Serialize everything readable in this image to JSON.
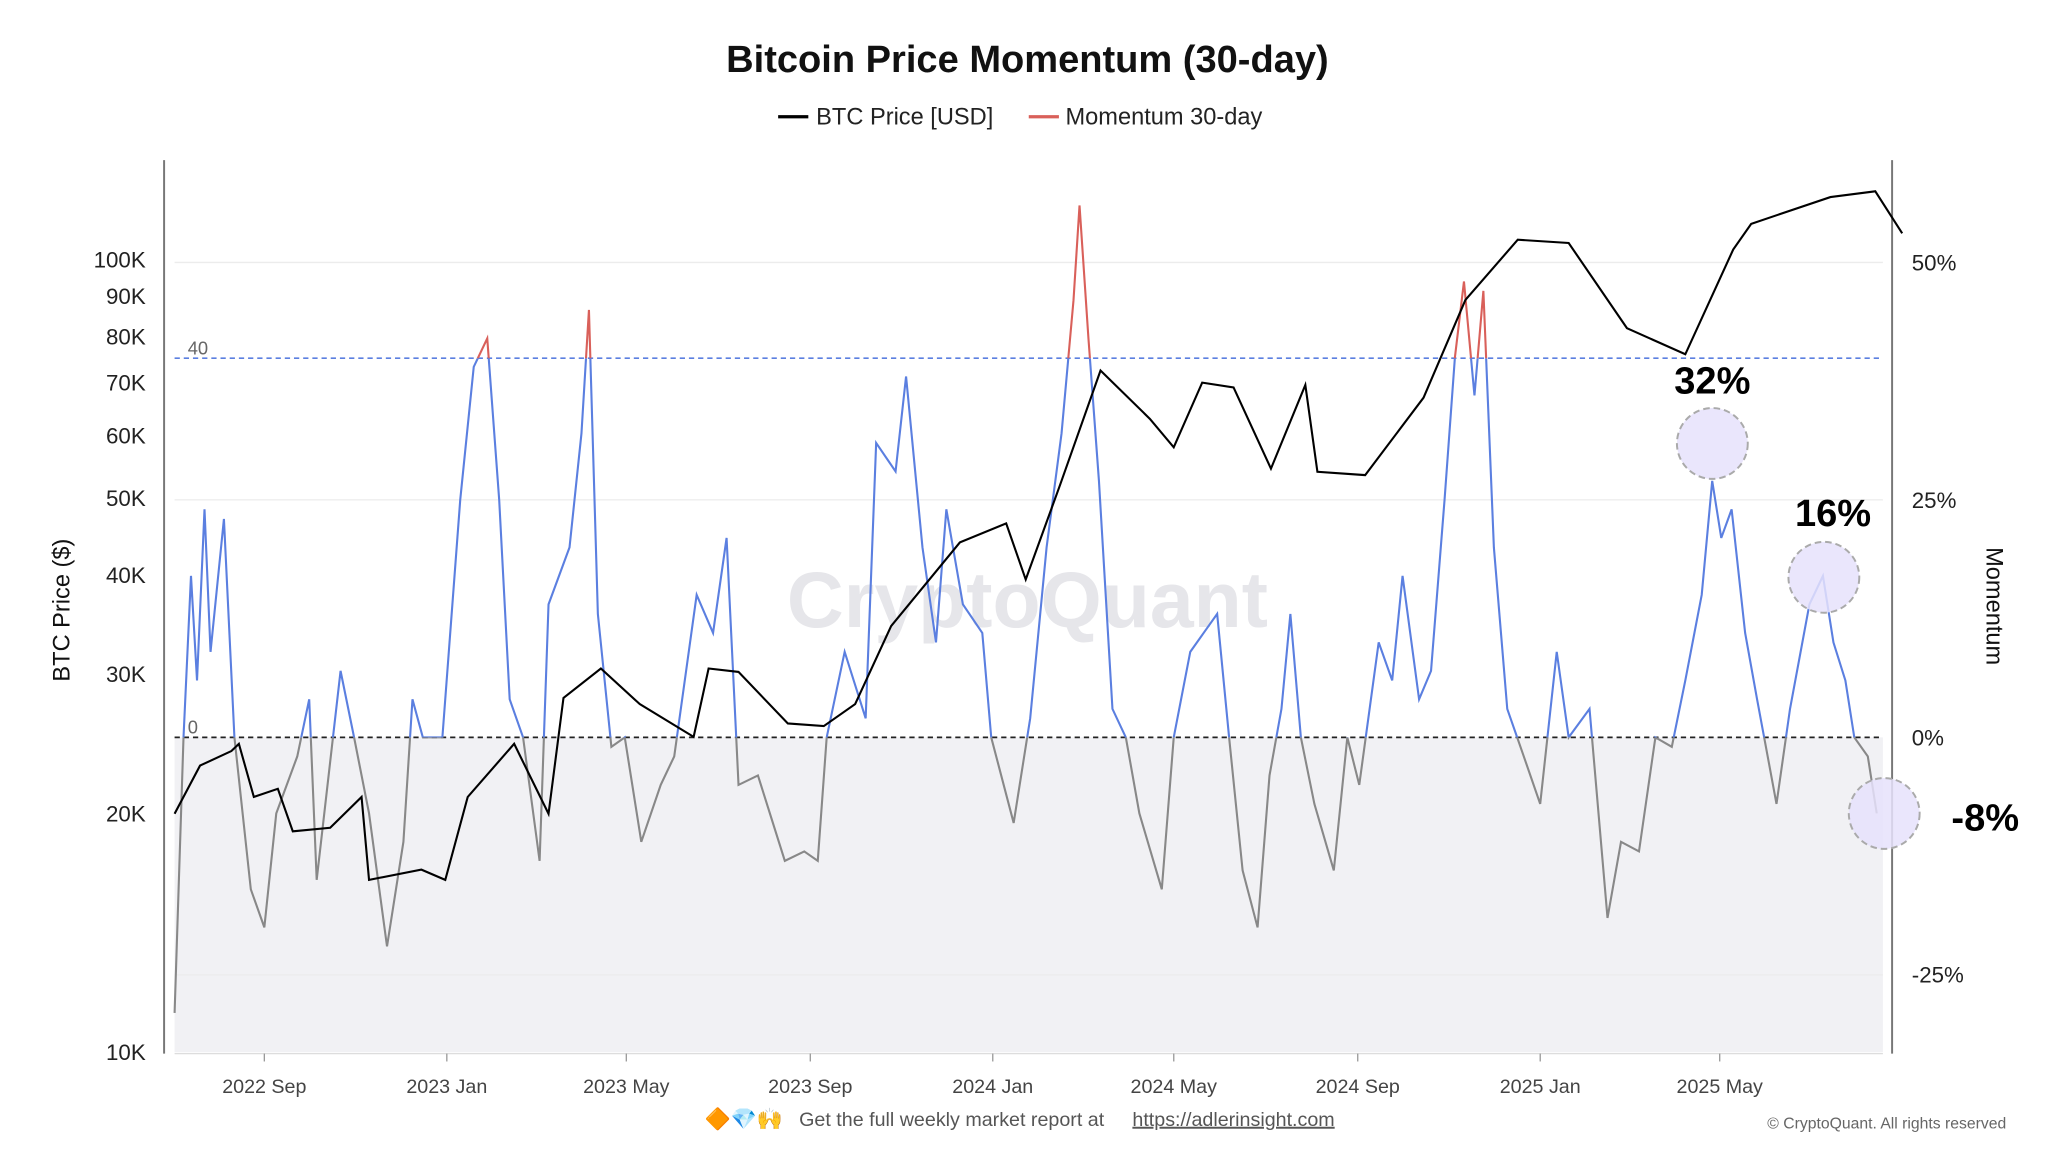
{
  "chart_data": {
    "type": "line",
    "title": "Bitcoin Price Momentum (30-day)",
    "legend": [
      {
        "name": "BTC Price [USD]",
        "color": "#000000"
      },
      {
        "name": "Momentum 30-day",
        "color": "#d9605a"
      }
    ],
    "legend_position": "top",
    "ylabel_left": "BTC Price ($)",
    "ylabel_right": "Momentum",
    "left_axis": {
      "scale": "log",
      "range": [
        10000,
        130000
      ],
      "ticks": [
        "10K",
        "20K",
        "30K",
        "40K",
        "50K",
        "60K",
        "70K",
        "80K",
        "90K",
        "100K"
      ]
    },
    "right_axis": {
      "range": [
        -33,
        60
      ],
      "ticks": [
        "-25%",
        "0%",
        "25%",
        "50%"
      ]
    },
    "x_ticks": [
      "2022 Sep",
      "2023 Jan",
      "2023 May",
      "2023 Sep",
      "2024 Jan",
      "2024 May",
      "2024 Sep",
      "2025 Jan",
      "2025 May"
    ],
    "x_range": [
      "2022-07-03",
      "2025-08-31"
    ],
    "threshold_lines": [
      {
        "label": "40",
        "value": 40,
        "color": "#5b7fe0"
      },
      {
        "label": "0",
        "value": 0,
        "color": "#222222"
      }
    ],
    "momentum_colors": {
      "above_40": "#d9605a",
      "between_0_40": "#5b7fe0",
      "below_0": "#888888"
    },
    "annotations": [
      "32%",
      "16%",
      "-8%"
    ],
    "watermark": "CryptoQuant",
    "btc_price": [
      [
        "2022-07-03",
        20000
      ],
      [
        "2022-07-20",
        23000
      ],
      [
        "2022-08-10",
        24000
      ],
      [
        "2022-08-15",
        24500
      ],
      [
        "2022-08-25",
        21000
      ],
      [
        "2022-09-10",
        21500
      ],
      [
        "2022-09-20",
        19000
      ],
      [
        "2022-10-15",
        19200
      ],
      [
        "2022-11-05",
        21000
      ],
      [
        "2022-11-10",
        16500
      ],
      [
        "2022-12-15",
        17000
      ],
      [
        "2022-12-31",
        16500
      ],
      [
        "2023-01-15",
        21000
      ],
      [
        "2023-02-15",
        24500
      ],
      [
        "2023-03-10",
        20000
      ],
      [
        "2023-03-20",
        28000
      ],
      [
        "2023-04-14",
        30500
      ],
      [
        "2023-05-10",
        27500
      ],
      [
        "2023-06-15",
        25000
      ],
      [
        "2023-06-25",
        30500
      ],
      [
        "2023-07-15",
        30200
      ],
      [
        "2023-08-17",
        26000
      ],
      [
        "2023-09-10",
        25800
      ],
      [
        "2023-10-01",
        27500
      ],
      [
        "2023-10-25",
        34500
      ],
      [
        "2023-12-10",
        44000
      ],
      [
        "2024-01-10",
        46500
      ],
      [
        "2024-01-23",
        39500
      ],
      [
        "2024-02-15",
        52000
      ],
      [
        "2024-03-13",
        72500
      ],
      [
        "2024-04-15",
        63000
      ],
      [
        "2024-05-01",
        58000
      ],
      [
        "2024-05-20",
        70000
      ],
      [
        "2024-06-10",
        69000
      ],
      [
        "2024-07-05",
        54500
      ],
      [
        "2024-07-28",
        69500
      ],
      [
        "2024-08-05",
        54000
      ],
      [
        "2024-09-06",
        53500
      ],
      [
        "2024-10-15",
        67000
      ],
      [
        "2024-11-12",
        89000
      ],
      [
        "2024-12-17",
        106000
      ],
      [
        "2025-01-20",
        105000
      ],
      [
        "2025-02-28",
        82000
      ],
      [
        "2025-04-08",
        76000
      ],
      [
        "2025-05-10",
        103000
      ],
      [
        "2025-05-22",
        111000
      ],
      [
        "2025-07-14",
        120000
      ],
      [
        "2025-08-13",
        122000
      ],
      [
        "2025-08-31",
        108000
      ]
    ],
    "momentum_30d": [
      [
        "2022-07-03",
        -29
      ],
      [
        "2022-07-09",
        0
      ],
      [
        "2022-07-14",
        17
      ],
      [
        "2022-07-18",
        6
      ],
      [
        "2022-07-23",
        24
      ],
      [
        "2022-07-27",
        9
      ],
      [
        "2022-08-05",
        23
      ],
      [
        "2022-08-12",
        0
      ],
      [
        "2022-08-23",
        -16
      ],
      [
        "2022-09-01",
        -20
      ],
      [
        "2022-09-09",
        -8
      ],
      [
        "2022-09-23",
        -2
      ],
      [
        "2022-10-01",
        4
      ],
      [
        "2022-10-06",
        -15
      ],
      [
        "2022-10-22",
        7
      ],
      [
        "2022-10-31",
        0
      ],
      [
        "2022-11-10",
        -8
      ],
      [
        "2022-11-22",
        -22
      ],
      [
        "2022-12-03",
        -11
      ],
      [
        "2022-12-09",
        4
      ],
      [
        "2022-12-16",
        0
      ],
      [
        "2022-12-29",
        0
      ],
      [
        "2023-01-10",
        25
      ],
      [
        "2023-01-19",
        39
      ],
      [
        "2023-01-28",
        42
      ],
      [
        "2023-02-05",
        25
      ],
      [
        "2023-02-12",
        4
      ],
      [
        "2023-02-21",
        0
      ],
      [
        "2023-03-04",
        -13
      ],
      [
        "2023-03-10",
        14
      ],
      [
        "2023-03-24",
        20
      ],
      [
        "2023-04-01",
        32
      ],
      [
        "2023-04-06",
        45
      ],
      [
        "2023-04-12",
        13
      ],
      [
        "2023-04-21",
        -1
      ],
      [
        "2023-04-30",
        0
      ],
      [
        "2023-05-11",
        -11
      ],
      [
        "2023-05-24",
        -5
      ],
      [
        "2023-06-02",
        -2
      ],
      [
        "2023-06-17",
        15
      ],
      [
        "2023-06-28",
        11
      ],
      [
        "2023-07-07",
        21
      ],
      [
        "2023-07-15",
        -5
      ],
      [
        "2023-07-28",
        -4
      ],
      [
        "2023-08-15",
        -13
      ],
      [
        "2023-08-28",
        -12
      ],
      [
        "2023-09-06",
        -13
      ],
      [
        "2023-09-12",
        0
      ],
      [
        "2023-09-24",
        9
      ],
      [
        "2023-10-08",
        2
      ],
      [
        "2023-10-15",
        31
      ],
      [
        "2023-10-28",
        28
      ],
      [
        "2023-11-04",
        38
      ],
      [
        "2023-11-15",
        20
      ],
      [
        "2023-11-24",
        10
      ],
      [
        "2023-12-01",
        24
      ],
      [
        "2023-12-12",
        14
      ],
      [
        "2023-12-25",
        11
      ],
      [
        "2023-12-31",
        0
      ],
      [
        "2024-01-15",
        -9
      ],
      [
        "2024-01-26",
        2
      ],
      [
        "2024-02-06",
        20
      ],
      [
        "2024-02-16",
        32
      ],
      [
        "2024-02-24",
        46
      ],
      [
        "2024-02-28",
        56
      ],
      [
        "2024-03-05",
        42
      ],
      [
        "2024-03-12",
        27
      ],
      [
        "2024-03-21",
        3
      ],
      [
        "2024-03-30",
        0
      ],
      [
        "2024-04-08",
        -8
      ],
      [
        "2024-04-23",
        -16
      ],
      [
        "2024-05-01",
        0
      ],
      [
        "2024-05-12",
        9
      ],
      [
        "2024-05-21",
        11
      ],
      [
        "2024-05-30",
        13
      ],
      [
        "2024-06-07",
        0
      ],
      [
        "2024-06-16",
        -14
      ],
      [
        "2024-06-26",
        -20
      ],
      [
        "2024-07-04",
        -4
      ],
      [
        "2024-07-12",
        3
      ],
      [
        "2024-07-18",
        13
      ],
      [
        "2024-07-25",
        0
      ],
      [
        "2024-08-03",
        -7
      ],
      [
        "2024-08-16",
        -14
      ],
      [
        "2024-08-25",
        0
      ],
      [
        "2024-09-02",
        -5
      ],
      [
        "2024-09-15",
        10
      ],
      [
        "2024-09-24",
        6
      ],
      [
        "2024-10-01",
        17
      ],
      [
        "2024-10-12",
        4
      ],
      [
        "2024-10-20",
        7
      ],
      [
        "2024-10-29",
        25
      ],
      [
        "2024-11-05",
        40
      ],
      [
        "2024-11-11",
        48
      ],
      [
        "2024-11-18",
        36
      ],
      [
        "2024-11-24",
        47
      ],
      [
        "2024-12-01",
        20
      ],
      [
        "2024-12-10",
        3
      ],
      [
        "2024-12-21",
        -2
      ],
      [
        "2025-01-01",
        -7
      ],
      [
        "2025-01-12",
        9
      ],
      [
        "2025-01-20",
        0
      ],
      [
        "2025-02-03",
        3
      ],
      [
        "2025-02-15",
        -19
      ],
      [
        "2025-02-24",
        -11
      ],
      [
        "2025-03-08",
        -12
      ],
      [
        "2025-03-19",
        0
      ],
      [
        "2025-03-30",
        -1
      ],
      [
        "2025-04-08",
        6
      ],
      [
        "2025-04-19",
        15
      ],
      [
        "2025-04-26",
        27
      ],
      [
        "2025-05-02",
        21
      ],
      [
        "2025-05-09",
        24
      ],
      [
        "2025-05-18",
        11
      ],
      [
        "2025-05-26",
        4
      ],
      [
        "2025-06-08",
        -7
      ],
      [
        "2025-06-17",
        3
      ],
      [
        "2025-06-30",
        14
      ],
      [
        "2025-07-09",
        17
      ],
      [
        "2025-07-16",
        10
      ],
      [
        "2025-07-24",
        6
      ],
      [
        "2025-07-30",
        0
      ],
      [
        "2025-08-08",
        -2
      ],
      [
        "2025-08-14",
        -8
      ]
    ]
  },
  "footer": {
    "emojis": "🔶💎🙌",
    "text": "Get the full weekly market report at",
    "link": "https://adlerinsight.com",
    "copyright": "© CryptoQuant. All rights reserved"
  }
}
